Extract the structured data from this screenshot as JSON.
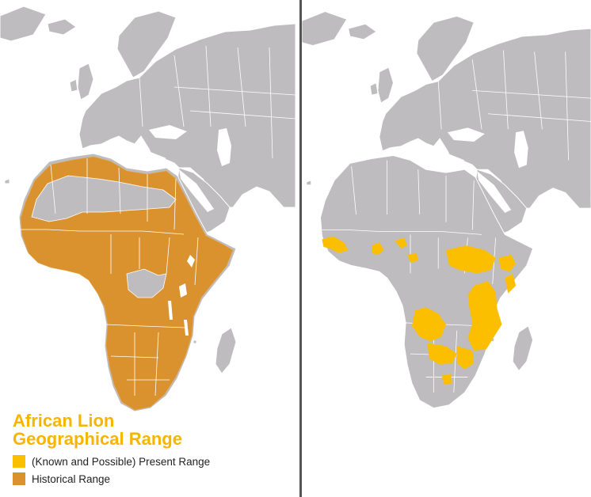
{
  "legend": {
    "title_line1": "African Lion",
    "title_line2": "Geographical Range",
    "title_color": "#F7B500",
    "items": [
      {
        "label": "(Known and Possible) Present Range",
        "color": "#FBBF00"
      },
      {
        "label": "Historical Range",
        "color": "#D9922E"
      }
    ]
  },
  "map_colors": {
    "land": "#BEBCBE",
    "border": "#FFFFFF",
    "water": "#FFFFFF",
    "historical_range": "#D9922E",
    "present_range": "#FBBF00",
    "divider": "#555555"
  }
}
